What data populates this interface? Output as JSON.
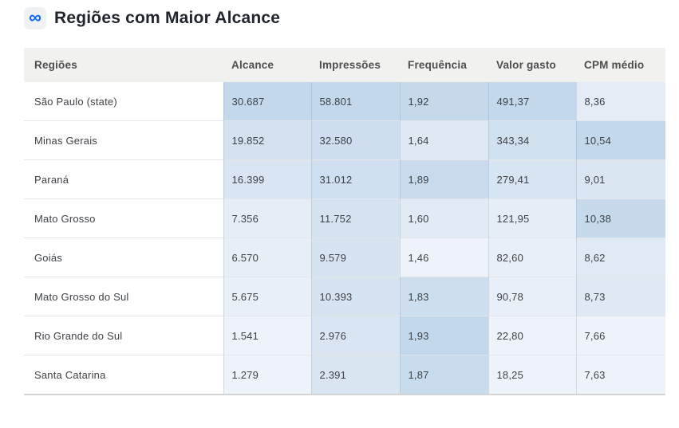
{
  "header": {
    "icon": "meta-infinity-icon",
    "icon_glyph": "∞",
    "title": "Regiões com Maior Alcance"
  },
  "colors": {
    "meta_blue": "#0866ff",
    "icon_bg": "#f0f1f2",
    "title_text": "#20252e",
    "header_row_bg": "#f1f1f0",
    "header_text": "#4d4d4d",
    "body_text": "#3e4247",
    "row_border": "#e4e7ea",
    "table_bottom_border": "#d4d4d4",
    "heatmap_low": "#eef3f9",
    "heatmap_high": "#c4d8eb"
  },
  "chart_data": {
    "type": "table",
    "title": "Regiões com Maior Alcance",
    "columns": [
      "Regiões",
      "Alcance",
      "Impressões",
      "Frequência",
      "Valor gasto",
      "CPM médio"
    ],
    "rows": [
      {
        "region": "São Paulo (state)",
        "values": [
          "30.687",
          "58.801",
          "1,92",
          "491,37",
          "8,36"
        ],
        "numeric": [
          30687,
          58801,
          1.92,
          491.37,
          8.36
        ],
        "shades": [
          1.0,
          1.0,
          0.98,
          1.0,
          0.25
        ]
      },
      {
        "region": "Minas Gerais",
        "values": [
          "19.852",
          "32.580",
          "1,64",
          "343,34",
          "10,54"
        ],
        "numeric": [
          19852,
          32580,
          1.64,
          343.34,
          10.54
        ],
        "shades": [
          0.63,
          0.77,
          0.38,
          0.69,
          1.0
        ]
      },
      {
        "region": "Paraná",
        "values": [
          "16.399",
          "31.012",
          "1,89",
          "279,41",
          "9,01"
        ],
        "numeric": [
          16399,
          31012,
          1.89,
          279.41,
          9.01
        ],
        "shades": [
          0.51,
          0.75,
          0.91,
          0.55,
          0.47
        ]
      },
      {
        "region": "Mato Grosso",
        "values": [
          "7.356",
          "11.752",
          "1,60",
          "121,95",
          "10,38"
        ],
        "numeric": [
          7356,
          11752,
          1.6,
          121.95,
          10.38
        ],
        "shades": [
          0.21,
          0.58,
          0.3,
          0.22,
          0.94
        ]
      },
      {
        "region": "Goiás",
        "values": [
          "6.570",
          "9.579",
          "1,46",
          "82,60",
          "8,62"
        ],
        "numeric": [
          6570,
          9579,
          1.46,
          82.6,
          8.62
        ],
        "shades": [
          0.18,
          0.56,
          0.0,
          0.14,
          0.34
        ]
      },
      {
        "region": "Mato Grosso do Sul",
        "values": [
          "5.675",
          "10.393",
          "1,83",
          "90,78",
          "8,73"
        ],
        "numeric": [
          5675,
          10393,
          1.83,
          90.78,
          8.73
        ],
        "shades": [
          0.15,
          0.57,
          0.79,
          0.15,
          0.38
        ]
      },
      {
        "region": "Rio Grande do Sul",
        "values": [
          "1.541",
          "2.976",
          "1,93",
          "22,80",
          "7,66"
        ],
        "numeric": [
          1541,
          2976,
          1.93,
          22.8,
          7.66
        ],
        "shades": [
          0.01,
          0.51,
          1.0,
          0.01,
          0.01
        ]
      },
      {
        "region": "Santa Catarina",
        "values": [
          "1.279",
          "2.391",
          "1,87",
          "18,25",
          "7,63"
        ],
        "numeric": [
          1279,
          2391,
          1.87,
          18.25,
          7.63
        ],
        "shades": [
          0.0,
          0.5,
          0.87,
          0.0,
          0.0
        ]
      }
    ]
  }
}
